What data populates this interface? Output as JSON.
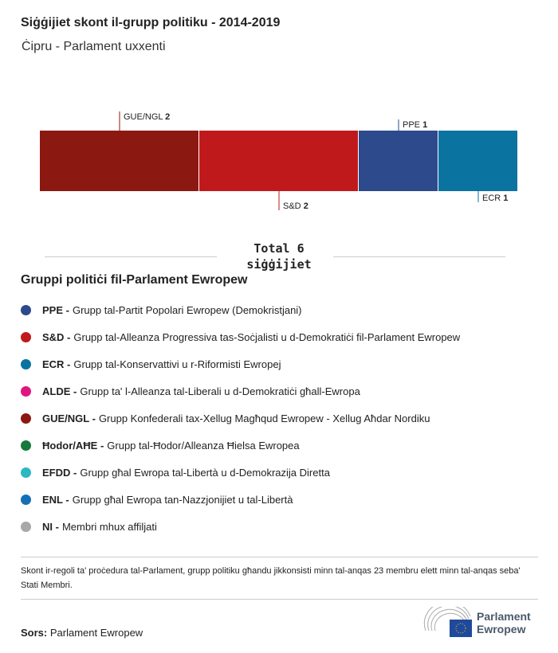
{
  "title": "Siġġijiet skont il-grupp politiku - 2014-2019",
  "subtitle": "Ċipru - Parlament uxxenti",
  "chart_data": {
    "type": "bar",
    "orientation": "stacked-horizontal",
    "categories": [
      "GUE/NGL",
      "S&D",
      "PPE",
      "ECR"
    ],
    "values": [
      2,
      2,
      1,
      1
    ],
    "colors": [
      "#8c1812",
      "#c0191b",
      "#2c4a8c",
      "#0a73a0"
    ],
    "total": 6,
    "xlim": [
      0,
      6
    ]
  },
  "total_label": "Total 6 siġġijiet",
  "legend_title": "Gruppi politiċi fil-Parlament Ewropew",
  "legend": [
    {
      "abbr": "PPE -",
      "text": "Grupp tal-Partit Popolari Ewropew (Demokristjani)",
      "color": "#2c4a8c"
    },
    {
      "abbr": "S&D -",
      "text": "Grupp tal-Alleanza Progressiva tas-Soċjalisti u d-Demokratiċi fil-Parlament Ewropew",
      "color": "#c0191b"
    },
    {
      "abbr": "ECR -",
      "text": "Grupp tal-Konservattivi u r-Riformisti Ewropej",
      "color": "#0a73a0"
    },
    {
      "abbr": "ALDE -",
      "text": "Grupp ta' l-Alleanza tal-Liberali u d-Demokratiċi għall-Ewropa",
      "color": "#e0167f"
    },
    {
      "abbr": "GUE/NGL -",
      "text": "Grupp Konfederali tax-Xellug Magħqud Ewropew - Xellug Aħdar Nordiku",
      "color": "#8c1812"
    },
    {
      "abbr": "Ħodor/AĦE -",
      "text": "Grupp tal-Ħodor/Alleanza Ħielsa Ewropea",
      "color": "#17793a"
    },
    {
      "abbr": "EFDD -",
      "text": "Grupp għal Ewropa tal-Libertà u d-Demokrazija Diretta",
      "color": "#2cb8c3"
    },
    {
      "abbr": "ENL -",
      "text": "Grupp għal Ewropa tan-Nazzjonijiet u tal-Libertà",
      "color": "#1471b7"
    },
    {
      "abbr": "NI -",
      "text": "Membri mhux affiljati",
      "color": "#a8a8a8"
    }
  ],
  "note": "Skont ir-regoli ta' proċedura tal-Parlament, grupp politiku għandu jikkonsisti minn tal-anqas 23 membru elett minn tal-anqas seba' Stati Membri.",
  "source_label": "Sors:",
  "source": "Parlament Ewropew",
  "logo_text": "Parlament Ewropew"
}
